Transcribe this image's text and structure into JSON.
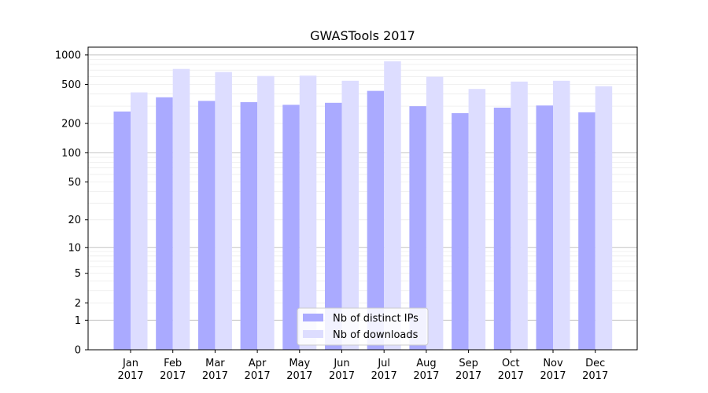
{
  "chart_data": {
    "type": "bar",
    "title": "GWASTools 2017",
    "xlabel": "",
    "ylabel": "",
    "yscale": "log(1+y)",
    "ylim": [
      0,
      1200
    ],
    "ytick_labels": [
      "0",
      "1",
      "2",
      "5",
      "10",
      "20",
      "50",
      "100",
      "200",
      "500",
      "1000"
    ],
    "ytick_values": [
      0,
      1,
      2,
      5,
      10,
      20,
      50,
      100,
      200,
      500,
      1000
    ],
    "grid": true,
    "legend_position": "bottom-center",
    "categories": [
      "Jan\n2017",
      "Feb\n2017",
      "Mar\n2017",
      "Apr\n2017",
      "May\n2017",
      "Jun\n2017",
      "Jul\n2017",
      "Aug\n2017",
      "Sep\n2017",
      "Oct\n2017",
      "Nov\n2017",
      "Dec\n2017"
    ],
    "series": [
      {
        "name": "Nb of distinct IPs",
        "color": "#aaaaff",
        "values": [
          265,
          370,
          340,
          330,
          310,
          325,
          430,
          300,
          255,
          290,
          305,
          260
        ]
      },
      {
        "name": "Nb of downloads",
        "color": "#ddddff",
        "values": [
          415,
          720,
          670,
          610,
          615,
          545,
          860,
          600,
          450,
          535,
          545,
          480
        ]
      }
    ]
  }
}
